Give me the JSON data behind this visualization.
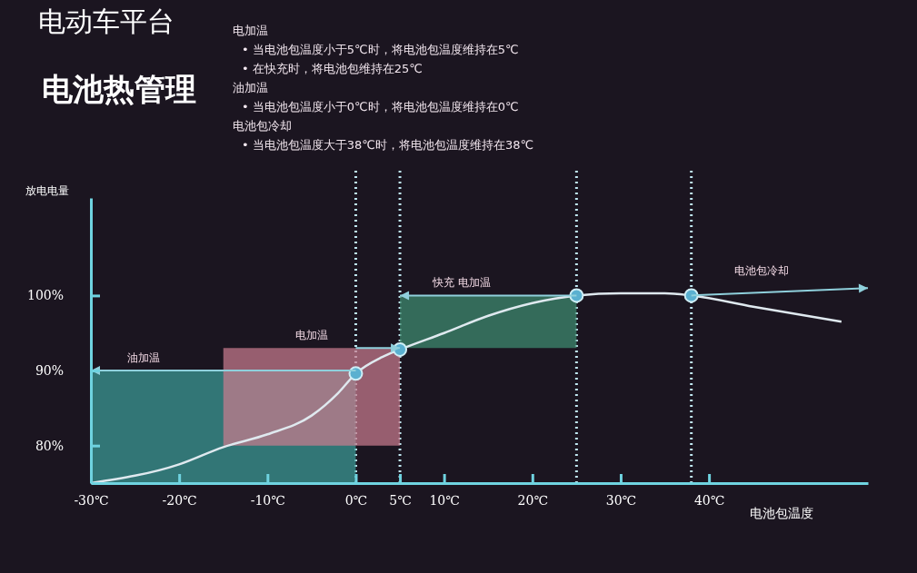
{
  "chart_data": {
    "type": "line",
    "title": "电动车平台",
    "subtitle": "电池热管理",
    "xlabel": "电池包温度",
    "ylabel": "放电电量",
    "xlim": [
      -30,
      58
    ],
    "ylim": [
      75,
      113
    ],
    "xticks": [
      {
        "value": -30,
        "label": "-30℃"
      },
      {
        "value": -20,
        "label": "-20℃"
      },
      {
        "value": -10,
        "label": "-10℃"
      },
      {
        "value": 0,
        "label": "0℃"
      },
      {
        "value": 5,
        "label": "5℃"
      },
      {
        "value": 10,
        "label": "10℃"
      },
      {
        "value": 20,
        "label": "20℃"
      },
      {
        "value": 30,
        "label": "30℃"
      },
      {
        "value": 40,
        "label": "40℃"
      }
    ],
    "yticks": [
      {
        "value": 80,
        "label": "80%"
      },
      {
        "value": 90,
        "label": "90%"
      },
      {
        "value": 100,
        "label": "100%"
      }
    ],
    "grid": false,
    "series": [
      {
        "type": "area",
        "color": "#3b9c97",
        "x": [
          -30,
          0
        ],
        "values": [
          90,
          90
        ]
      },
      {
        "type": "area",
        "color": "#c77b8d",
        "x": [
          -15,
          5
        ],
        "values": [
          null,
          null
        ],
        "lower": [
          80,
          80
        ],
        "upper": [
          93,
          93
        ]
      },
      {
        "type": "area",
        "color": "#3f8e70",
        "x": [
          5,
          25
        ],
        "values": [
          null,
          null
        ],
        "lower": [
          93,
          93
        ],
        "upper": [
          100,
          100
        ]
      },
      {
        "color": "#dfe9ef",
        "x": [
          -30,
          -20,
          -15,
          -10,
          -5,
          -2,
          0,
          3,
          5,
          10,
          15,
          20,
          25,
          30,
          35,
          38,
          45,
          55
        ],
        "values": [
          75,
          77.5,
          79.8,
          81.5,
          84,
          87,
          89.6,
          91.8,
          92.8,
          95,
          97.3,
          99,
          100,
          100.3,
          100.3,
          100,
          98.5,
          96.5
        ]
      },
      {
        "type": "scatter",
        "color": "#5ab0d0",
        "marker": "circle",
        "x": [
          0,
          5,
          25,
          38
        ],
        "values": [
          89.6,
          92.8,
          100,
          100
        ]
      }
    ],
    "ref_lines": [
      {
        "axis": "x",
        "value": 0,
        "line_style": "dotted",
        "color": "#bfe6f0"
      },
      {
        "axis": "x",
        "value": 5,
        "line_style": "dotted",
        "color": "#bfe6f0"
      },
      {
        "axis": "x",
        "value": 25,
        "line_style": "dotted",
        "color": "#bfe6f0"
      },
      {
        "axis": "x",
        "value": 38,
        "line_style": "dotted",
        "color": "#bfe6f0"
      }
    ],
    "annotations": [
      "电加温",
      "• 当电池包温度小于5℃时，将电池包温度维持在5℃",
      "• 在快充时，将电池包维持在25℃",
      "油加温",
      "• 当电池包温度小于0℃时，将电池包温度维持在0℃",
      "电池包冷却",
      "• 当电池包温度大于38℃时，将电池包温度维持在38℃",
      {
        "text": "油加温",
        "x": -24,
        "y": 90
      },
      {
        "text": "电加温",
        "x": -5,
        "y": 93
      },
      {
        "text": "快充 电加温",
        "x": 12,
        "y": 100
      },
      "电池包冷却"
    ]
  }
}
